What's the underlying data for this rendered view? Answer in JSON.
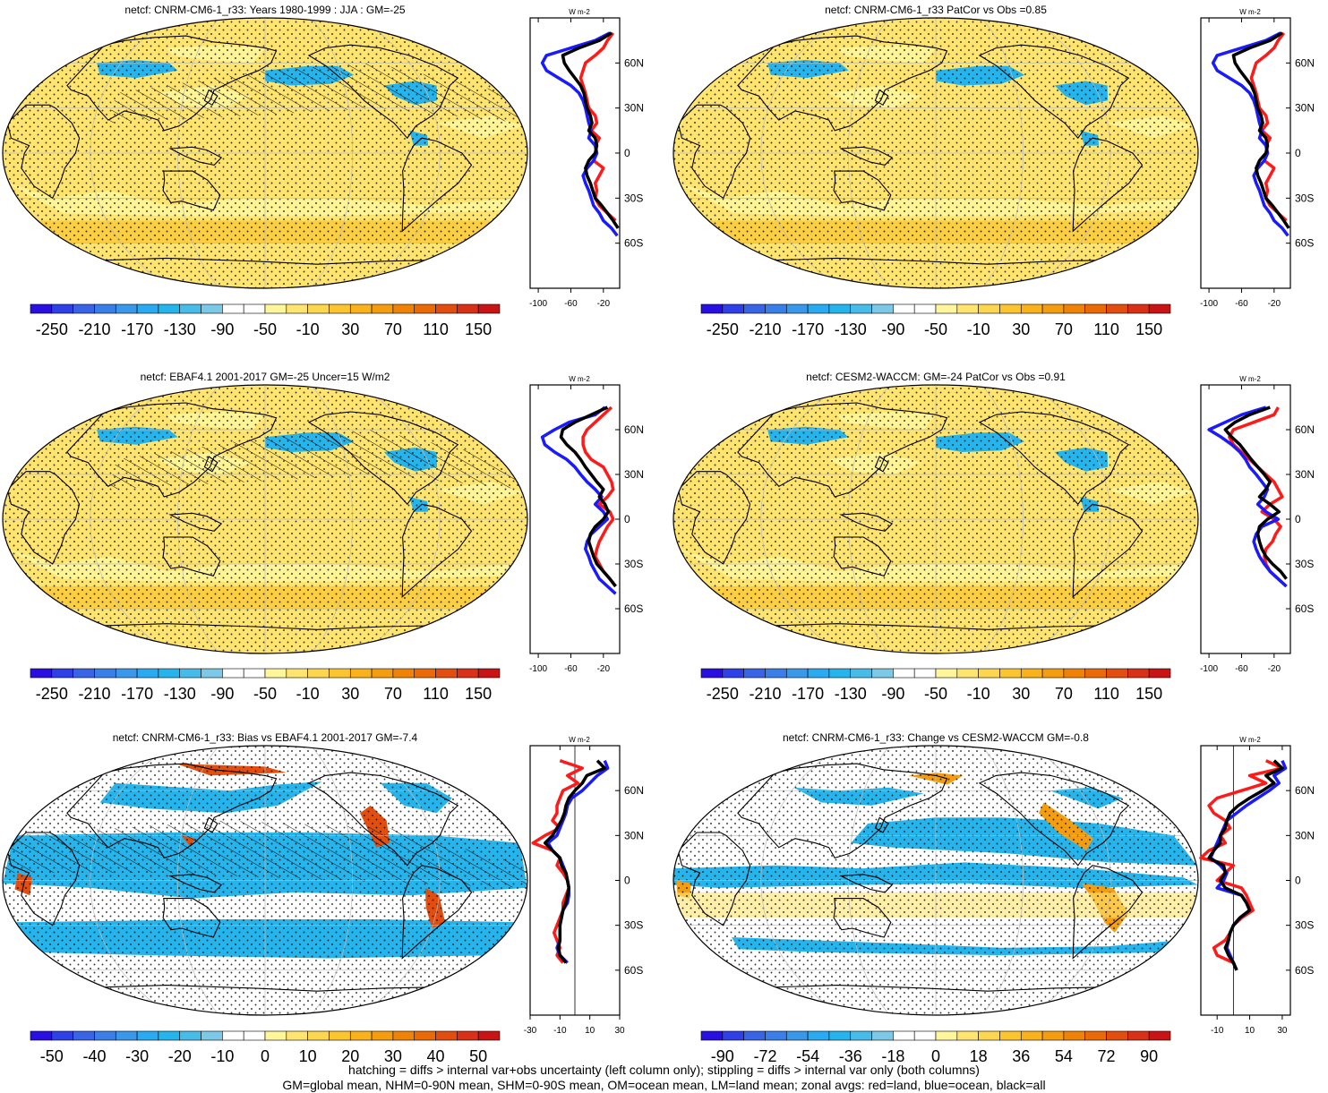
{
  "palettes": {
    "main": [
      "#2a10e0",
      "#2f40e6",
      "#3a64e6",
      "#3a7ee8",
      "#3a98ea",
      "#2aaaf0",
      "#25b5ec",
      "#48bce8",
      "#7cc8e6",
      "#ffffff",
      "#ffffff",
      "#fff59a",
      "#ffe570",
      "#fdd64f",
      "#fbc52f",
      "#f9b21b",
      "#f59d10",
      "#f08307",
      "#ea6a08",
      "#e24e10",
      "#d83117",
      "#c81414"
    ],
    "bias": [
      "#2a10e0",
      "#2f40e6",
      "#3a64e6",
      "#3a7ee8",
      "#3a98ea",
      "#2aaaf0",
      "#25b5ec",
      "#48bce8",
      "#7cc8e6",
      "#ffffff",
      "#ffffff",
      "#fff59a",
      "#ffe570",
      "#fdd64f",
      "#fbc52f",
      "#f9b21b",
      "#f59d10",
      "#f08307",
      "#ea6a08",
      "#e24e10",
      "#d83117",
      "#c81414"
    ]
  },
  "line_colors": {
    "land": "#ff1a1a",
    "ocean": "#1a1aff",
    "all": "#000000"
  },
  "chart_data": [
    {
      "type": "heatmap",
      "title": "netcf: CNRM-CM6-1_r33: Years 1980-1999 : JJA : GM=-25",
      "palette": "main",
      "colorbar_labels": [
        "-250",
        "-210",
        "-170",
        "-130",
        "-90",
        "-50",
        "-10",
        "30",
        "70",
        "110",
        "150"
      ],
      "pattern": "mean",
      "hatch": true,
      "hatch_region": "mean",
      "zonal": {
        "xlim": [
          -110,
          0
        ],
        "xticks": [
          -100,
          -60,
          -20
        ],
        "unit_label": "W m-2",
        "yticks": [
          "60N",
          "30N",
          "0",
          "30S",
          "60S"
        ],
        "lat": [
          80,
          75,
          70,
          65,
          60,
          55,
          50,
          45,
          40,
          35,
          30,
          25,
          20,
          15,
          10,
          5,
          0,
          -5,
          -10,
          -15,
          -20,
          -25,
          -30,
          -35,
          -40,
          -45,
          -50,
          -55,
          -60
        ],
        "land": [
          -8,
          -15,
          -20,
          -30,
          -42,
          -45,
          -48,
          -45,
          -42,
          -40,
          -38,
          -30,
          -28,
          -35,
          -25,
          -30,
          -28,
          -32,
          -20,
          -25,
          -30,
          -28,
          -30,
          -25,
          -15,
          -5
        ],
        "ocean": [
          -12,
          -30,
          -60,
          -90,
          -95,
          -90,
          -75,
          -60,
          -50,
          -45,
          -42,
          -40,
          -38,
          -35,
          -38,
          -30,
          -28,
          -32,
          -40,
          -45,
          -42,
          -38,
          -35,
          -32,
          -25,
          -20,
          -10,
          -3
        ],
        "all": [
          -10,
          -25,
          -50,
          -70,
          -68,
          -62,
          -55,
          -48,
          -44,
          -42,
          -40,
          -36,
          -34,
          -38,
          -30,
          -28,
          -30,
          -38,
          -42,
          -40,
          -36,
          -33,
          -30,
          -22,
          -15,
          -8,
          -2
        ]
      }
    },
    {
      "type": "heatmap",
      "title": "netcf: CNRM-CM6-1_r33 PatCor vs Obs =0.85",
      "palette": "main",
      "colorbar_labels": [
        "-250",
        "-210",
        "-170",
        "-130",
        "-90",
        "-50",
        "-10",
        "30",
        "70",
        "110",
        "150"
      ],
      "pattern": "mean",
      "hatch": false,
      "zonal": {
        "xlim": [
          -110,
          0
        ],
        "xticks": [
          -100,
          -60,
          -20
        ],
        "unit_label": "W m-2",
        "yticks": [
          "60N",
          "30N",
          "0",
          "30S",
          "60S"
        ],
        "lat": [
          80,
          75,
          70,
          65,
          60,
          55,
          50,
          45,
          40,
          35,
          30,
          25,
          20,
          15,
          10,
          5,
          0,
          -5,
          -10,
          -15,
          -20,
          -25,
          -30,
          -35,
          -40,
          -45,
          -50,
          -55,
          -60
        ],
        "land": [
          -8,
          -15,
          -20,
          -30,
          -42,
          -45,
          -48,
          -45,
          -42,
          -40,
          -38,
          -30,
          -28,
          -35,
          -25,
          -30,
          -28,
          -32,
          -20,
          -25,
          -30,
          -28,
          -30,
          -25,
          -15,
          -5
        ],
        "ocean": [
          -12,
          -30,
          -60,
          -90,
          -95,
          -90,
          -75,
          -60,
          -50,
          -45,
          -42,
          -40,
          -38,
          -35,
          -38,
          -30,
          -28,
          -32,
          -40,
          -45,
          -42,
          -38,
          -35,
          -32,
          -25,
          -20,
          -10,
          -3
        ],
        "all": [
          -10,
          -25,
          -50,
          -70,
          -68,
          -62,
          -55,
          -48,
          -44,
          -42,
          -40,
          -36,
          -34,
          -38,
          -30,
          -28,
          -30,
          -38,
          -42,
          -40,
          -36,
          -33,
          -30,
          -22,
          -15,
          -8,
          -2
        ]
      }
    },
    {
      "type": "heatmap",
      "title": "netcf: EBAF4.1 2001-2017 GM=-25 Uncer=15 W/m2",
      "palette": "main",
      "colorbar_labels": [
        "-250",
        "-210",
        "-170",
        "-130",
        "-90",
        "-50",
        "-10",
        "30",
        "70",
        "110",
        "150"
      ],
      "pattern": "mean",
      "hatch": true,
      "hatch_region": "mean",
      "zonal": {
        "xlim": [
          -110,
          0
        ],
        "xticks": [
          -100,
          -60,
          -20
        ],
        "unit_label": "W m-2",
        "yticks": [
          "60N",
          "30N",
          "0",
          "30S",
          "60S"
        ],
        "lat": [
          75,
          70,
          65,
          60,
          55,
          50,
          45,
          40,
          35,
          30,
          25,
          20,
          15,
          10,
          5,
          0,
          -5,
          -10,
          -15,
          -20,
          -25,
          -30,
          -35,
          -40,
          -45,
          -50,
          -55,
          -60
        ],
        "land": [
          -10,
          -20,
          -30,
          -40,
          -45,
          -45,
          -42,
          -35,
          -20,
          -15,
          -10,
          -8,
          -15,
          -25,
          -12,
          -8,
          -15,
          -20,
          -25,
          -28,
          -30,
          -25,
          -20,
          -12,
          -5
        ],
        "ocean": [
          -18,
          -30,
          -62,
          -80,
          -95,
          -92,
          -80,
          -65,
          -55,
          -48,
          -40,
          -30,
          -22,
          -30,
          -20,
          -15,
          -25,
          -35,
          -40,
          -42,
          -38,
          -35,
          -30,
          -25,
          -15,
          -5
        ],
        "all": [
          -15,
          -35,
          -55,
          -70,
          -72,
          -65,
          -55,
          -48,
          -42,
          -35,
          -28,
          -20,
          -25,
          -18,
          -14,
          -20,
          -30,
          -36,
          -38,
          -35,
          -32,
          -28,
          -20,
          -12,
          -5
        ]
      }
    },
    {
      "type": "heatmap",
      "title": "netcf: CESM2-WACCM: GM=-24 PatCor vs Obs =0.91",
      "palette": "main",
      "colorbar_labels": [
        "-250",
        "-210",
        "-170",
        "-130",
        "-90",
        "-50",
        "-10",
        "30",
        "70",
        "110",
        "150"
      ],
      "pattern": "mean",
      "hatch": false,
      "zonal": {
        "xlim": [
          -110,
          0
        ],
        "xticks": [
          -100,
          -60,
          -20
        ],
        "unit_label": "W m-2",
        "yticks": [
          "60N",
          "30N",
          "0",
          "30S",
          "60S"
        ],
        "lat": [
          75,
          70,
          65,
          60,
          55,
          50,
          45,
          40,
          35,
          30,
          25,
          20,
          15,
          10,
          5,
          0,
          -5,
          -10,
          -15,
          -20,
          -25,
          -30,
          -35,
          -40,
          -45,
          -50,
          -55,
          -60
        ],
        "land": [
          -15,
          -20,
          -45,
          -70,
          -75,
          -70,
          -60,
          -50,
          -40,
          -30,
          -20,
          -15,
          -10,
          -25,
          -35,
          -20,
          -12,
          -18,
          -22,
          -30,
          -32,
          -30,
          -25,
          -15,
          -5
        ],
        "ocean": [
          -30,
          -60,
          -80,
          -100,
          -85,
          -72,
          -62,
          -55,
          -50,
          -42,
          -35,
          -28,
          -32,
          -40,
          -30,
          -15,
          -35,
          -42,
          -45,
          -42,
          -38,
          -32,
          -25,
          -15,
          -5
        ],
        "all": [
          -25,
          -50,
          -68,
          -80,
          -72,
          -62,
          -55,
          -48,
          -40,
          -32,
          -25,
          -30,
          -38,
          -25,
          -14,
          -28,
          -38,
          -40,
          -38,
          -35,
          -30,
          -22,
          -12,
          -5
        ]
      }
    },
    {
      "type": "heatmap",
      "title": "netcf: CNRM-CM6-1_r33: Bias vs EBAF4.1 2001-2017 GM=-7.4",
      "palette": "bias",
      "colorbar_labels": [
        "-50",
        "-40",
        "-30",
        "-20",
        "-10",
        "0",
        "10",
        "20",
        "30",
        "40",
        "50"
      ],
      "pattern": "bias",
      "hatch": true,
      "hatch_region": "bias",
      "zonal": {
        "xlim": [
          -30,
          30
        ],
        "xticks": [
          -30,
          -10,
          10,
          30
        ],
        "unit_label": "W m-2",
        "yticks": [
          "60N",
          "30N",
          "0",
          "30S",
          "60S"
        ],
        "lat": [
          80,
          75,
          70,
          65,
          60,
          55,
          50,
          45,
          40,
          35,
          30,
          25,
          20,
          15,
          10,
          5,
          0,
          -5,
          -10,
          -15,
          -20,
          -25,
          -30,
          -35,
          -40,
          -45,
          -50,
          -55,
          -60,
          -65,
          -70,
          -75
        ],
        "land": [
          -10,
          5,
          -5,
          2,
          -8,
          -10,
          -12,
          -12,
          -15,
          -10,
          -20,
          -28,
          -15,
          -10,
          -12,
          -8,
          -5,
          -4,
          -6,
          -8,
          -8,
          -10,
          -12,
          -14,
          -12,
          -10,
          -12,
          -8
        ],
        "ocean": [
          20,
          22,
          15,
          10,
          5,
          -2,
          -5,
          -6,
          -8,
          -10,
          -12,
          -18,
          -15,
          -10,
          -8,
          -6,
          -5,
          -4,
          -4,
          -5,
          -8,
          -9,
          -10,
          -10,
          -10,
          -12,
          -10,
          -5
        ],
        "all": [
          15,
          20,
          8,
          5,
          0,
          -4,
          -6,
          -7,
          -9,
          -12,
          -15,
          -20,
          -15,
          -10,
          -9,
          -6,
          -5,
          -4,
          -5,
          -6,
          -8,
          -9,
          -10,
          -10,
          -10,
          -11,
          -10,
          -6
        ]
      }
    },
    {
      "type": "heatmap",
      "title": "netcf: CNRM-CM6-1_r33: Change vs CESM2-WACCM GM=-0.8",
      "palette": "bias",
      "colorbar_labels": [
        "-90",
        "-72",
        "-54",
        "-36",
        "-18",
        "0",
        "18",
        "36",
        "54",
        "72",
        "90"
      ],
      "pattern": "change",
      "hatch": false,
      "zonal": {
        "xlim": [
          -20,
          35
        ],
        "xticks": [
          -10,
          10,
          30
        ],
        "unit_label": "W m-2",
        "yticks": [
          "60N",
          "30N",
          "0",
          "30S",
          "60S"
        ],
        "lat": [
          80,
          75,
          70,
          65,
          60,
          55,
          50,
          45,
          40,
          35,
          30,
          25,
          20,
          15,
          10,
          5,
          0,
          -5,
          -10,
          -15,
          -20,
          -25,
          -30,
          -35,
          -40,
          -45,
          -50,
          -55,
          -60,
          -65,
          -70
        ],
        "land": [
          20,
          30,
          10,
          20,
          5,
          -10,
          -15,
          -12,
          -5,
          -2,
          -8,
          -5,
          -15,
          -20,
          0,
          -5,
          -10,
          5,
          8,
          10,
          12,
          5,
          0,
          -2,
          -5,
          -12,
          -10,
          0,
          2
        ],
        "ocean": [
          30,
          32,
          25,
          28,
          22,
          15,
          8,
          2,
          -4,
          -6,
          -8,
          -10,
          -12,
          -14,
          -8,
          -4,
          -6,
          -10,
          5,
          8,
          10,
          4,
          0,
          -2,
          -3,
          -4,
          -2,
          0,
          2
        ],
        "all": [
          25,
          30,
          20,
          25,
          18,
          10,
          3,
          -2,
          -4,
          -5,
          -8,
          -8,
          -12,
          -15,
          -6,
          -5,
          -8,
          -5,
          5,
          8,
          10,
          4,
          0,
          -2,
          -3,
          -5,
          -3,
          0,
          2
        ]
      }
    }
  ],
  "footer": {
    "line1": "hatching = diffs > internal var+obs uncertainty (left column only); stippling = diffs > internal var only (both columns)",
    "line2": "GM=global mean, NHM=0-90N mean, SHM=0-90S mean, OM=ocean mean, LM=land mean; zonal avgs: red=land, blue=ocean, black=all"
  }
}
